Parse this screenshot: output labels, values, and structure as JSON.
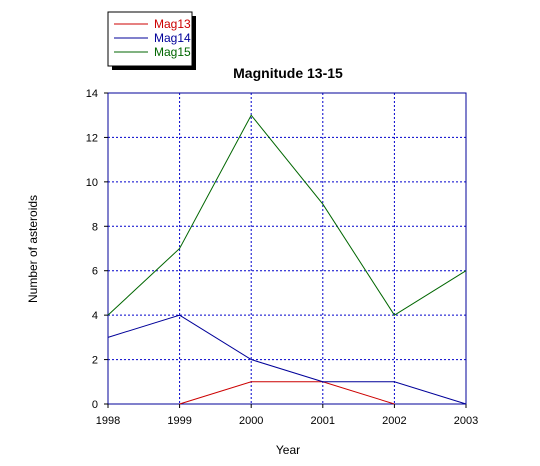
{
  "chart_data": {
    "type": "line",
    "title": "Magnitude 13-15",
    "xlabel": "Year",
    "ylabel": "Number of asteroids",
    "x": [
      "1998",
      "1999",
      "2000",
      "2001",
      "2002",
      "2003"
    ],
    "ylim": [
      0,
      14
    ],
    "yticks": [
      "0",
      "2",
      "4",
      "6",
      "8",
      "10",
      "12",
      "14"
    ],
    "grid": true,
    "legend_position": "top-left",
    "series": [
      {
        "name": "Mag13",
        "color": "#cc0000",
        "values": [
          null,
          0,
          1,
          1,
          0,
          null
        ]
      },
      {
        "name": "Mag14",
        "color": "#000099",
        "values": [
          3,
          4,
          2,
          1,
          1,
          0
        ]
      },
      {
        "name": "Mag15",
        "color": "#006600",
        "values": [
          4,
          7,
          13,
          9,
          4,
          6
        ]
      }
    ]
  }
}
